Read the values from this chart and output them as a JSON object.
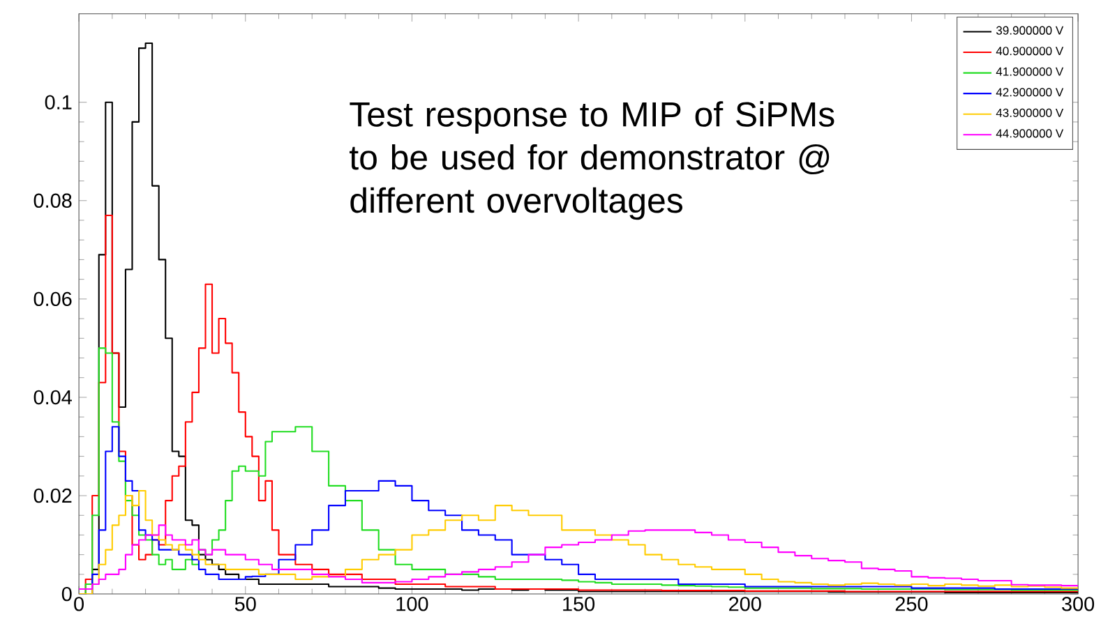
{
  "chart_data": {
    "type": "histogram",
    "annotations": [
      "Test response to MIP of SiPMs to be used for demonstrator @ different overvoltages"
    ],
    "bins": [
      0,
      2,
      4,
      6,
      8,
      10,
      12,
      14,
      16,
      18,
      20,
      22,
      24,
      26,
      28,
      30,
      32,
      34,
      36,
      38,
      40,
      42,
      44,
      46,
      48,
      50,
      52,
      54,
      56,
      58,
      60,
      65,
      70,
      75,
      80,
      85,
      90,
      95,
      100,
      105,
      110,
      115,
      120,
      125,
      130,
      135,
      140,
      145,
      150,
      155,
      160,
      165,
      170,
      175,
      180,
      185,
      190,
      195,
      200,
      205,
      210,
      215,
      220,
      225,
      230,
      235,
      240,
      245,
      250,
      255,
      260,
      265,
      270,
      275,
      280,
      285,
      290,
      295,
      300
    ],
    "series": [
      {
        "name": "39.900000 V",
        "color": "#000000",
        "values": [
          0,
          0,
          0.005,
          0.069,
          0.1,
          0.049,
          0.038,
          0.066,
          0.096,
          0.111,
          0.112,
          0.083,
          0.068,
          0.052,
          0.029,
          0.028,
          0.015,
          0.014,
          0.008,
          0.007,
          0.006,
          0.005,
          0.004,
          0.004,
          0.003,
          0.003,
          0.003,
          0.002,
          0.002,
          0.002,
          0.002,
          0.002,
          0.002,
          0.0015,
          0.0015,
          0.0015,
          0.0012,
          0.001,
          0.001,
          0.001,
          0.001,
          0.0008,
          0.001,
          0.001,
          0.0008,
          0.001,
          0.0008,
          0.0008,
          0.0005,
          0.0005,
          0.0005,
          0.0005,
          0.0005,
          0.0005,
          0.0005,
          0.0005,
          0.0005,
          0.0005,
          0.0005,
          0.0005,
          0.0005,
          0.0005,
          0.0005,
          0.0004,
          0.0004,
          0.0004,
          0.0004,
          0.0004,
          0.0004,
          0.0004,
          0.0003,
          0.0003,
          0.0003,
          0.0003,
          0.0003,
          0.0003,
          0.0003,
          0.0003
        ]
      },
      {
        "name": "40.900000 V",
        "color": "#ff0000",
        "values": [
          0,
          0.003,
          0.02,
          0.043,
          0.077,
          0.049,
          0.029,
          0.02,
          0.01,
          0.007,
          0.008,
          0.011,
          0.01,
          0.019,
          0.024,
          0.026,
          0.035,
          0.041,
          0.05,
          0.063,
          0.049,
          0.056,
          0.051,
          0.045,
          0.037,
          0.032,
          0.028,
          0.019,
          0.023,
          0.013,
          0.008,
          0.006,
          0.005,
          0.004,
          0.004,
          0.003,
          0.003,
          0.002,
          0.002,
          0.002,
          0.0015,
          0.0015,
          0.0015,
          0.001,
          0.001,
          0.001,
          0.001,
          0.001,
          0.0008,
          0.0008,
          0.0008,
          0.0008,
          0.0008,
          0.0007,
          0.0007,
          0.0007,
          0.0007,
          0.0007,
          0.0006,
          0.0006,
          0.0006,
          0.0006,
          0.0006,
          0.0006,
          0.0005,
          0.0005,
          0.0005,
          0.0005,
          0.0005,
          0.0005,
          0.0005,
          0.0005,
          0.0005,
          0.0005,
          0.0005,
          0.0005,
          0.0005,
          0.0005
        ]
      },
      {
        "name": "41.900000 V",
        "color": "#22dd22",
        "values": [
          0,
          0.002,
          0.016,
          0.05,
          0.049,
          0.035,
          0.027,
          0.019,
          0.016,
          0.012,
          0.011,
          0.008,
          0.006,
          0.007,
          0.005,
          0.005,
          0.007,
          0.006,
          0.009,
          0.008,
          0.011,
          0.013,
          0.019,
          0.025,
          0.026,
          0.025,
          0.025,
          0.024,
          0.031,
          0.033,
          0.033,
          0.034,
          0.029,
          0.022,
          0.019,
          0.013,
          0.009,
          0.006,
          0.005,
          0.005,
          0.004,
          0.004,
          0.0035,
          0.003,
          0.003,
          0.003,
          0.003,
          0.0028,
          0.0025,
          0.0023,
          0.002,
          0.002,
          0.002,
          0.0018,
          0.0017,
          0.0016,
          0.0015,
          0.0014,
          0.0012,
          0.0012,
          0.0012,
          0.0012,
          0.0011,
          0.0011,
          0.0011,
          0.001,
          0.001,
          0.001,
          0.001,
          0.001,
          0.0009,
          0.0009,
          0.0009,
          0.0009,
          0.0008,
          0.0008,
          0.0008,
          0.0008
        ]
      },
      {
        "name": "42.900000 V",
        "color": "#0000ff",
        "values": [
          0,
          0,
          0.004,
          0.013,
          0.029,
          0.034,
          0.028,
          0.023,
          0.021,
          0.013,
          0.012,
          0.011,
          0.009,
          0.009,
          0.009,
          0.008,
          0.008,
          0.007,
          0.005,
          0.004,
          0.004,
          0.003,
          0.003,
          0.003,
          0.003,
          0.0035,
          0.0036,
          0.0036,
          0.004,
          0.004,
          0.007,
          0.01,
          0.013,
          0.018,
          0.021,
          0.021,
          0.023,
          0.022,
          0.019,
          0.017,
          0.016,
          0.013,
          0.012,
          0.011,
          0.008,
          0.008,
          0.007,
          0.006,
          0.004,
          0.003,
          0.003,
          0.003,
          0.003,
          0.003,
          0.002,
          0.002,
          0.002,
          0.002,
          0.0015,
          0.0015,
          0.0015,
          0.0015,
          0.0015,
          0.0015,
          0.0015,
          0.0015,
          0.0015,
          0.0015,
          0.0012,
          0.0012,
          0.0012,
          0.0012,
          0.0012,
          0.001,
          0.001,
          0.001,
          0.001,
          0.001
        ]
      },
      {
        "name": "43.900000 V",
        "color": "#ffcc00",
        "values": [
          0,
          0,
          0.002,
          0.006,
          0.009,
          0.014,
          0.016,
          0.02,
          0.018,
          0.021,
          0.015,
          0.012,
          0.011,
          0.01,
          0.009,
          0.01,
          0.009,
          0.008,
          0.007,
          0.006,
          0.006,
          0.006,
          0.005,
          0.005,
          0.005,
          0.005,
          0.005,
          0.004,
          0.004,
          0.004,
          0.004,
          0.003,
          0.0035,
          0.0036,
          0.005,
          0.007,
          0.008,
          0.009,
          0.012,
          0.013,
          0.015,
          0.016,
          0.015,
          0.018,
          0.017,
          0.016,
          0.016,
          0.013,
          0.013,
          0.012,
          0.011,
          0.01,
          0.008,
          0.007,
          0.006,
          0.0055,
          0.005,
          0.005,
          0.004,
          0.003,
          0.0025,
          0.0023,
          0.002,
          0.0018,
          0.002,
          0.0022,
          0.002,
          0.0018,
          0.002,
          0.0017,
          0.002,
          0.0018,
          0.0016,
          0.0018,
          0.0015,
          0.0016,
          0.0014,
          0.0012
        ]
      },
      {
        "name": "44.900000 V",
        "color": "#ff00ff",
        "values": [
          0.001,
          0.001,
          0.002,
          0.003,
          0.004,
          0.004,
          0.005,
          0.008,
          0.01,
          0.011,
          0.012,
          0.012,
          0.014,
          0.012,
          0.011,
          0.011,
          0.01,
          0.011,
          0.009,
          0.008,
          0.009,
          0.009,
          0.008,
          0.008,
          0.008,
          0.007,
          0.007,
          0.006,
          0.006,
          0.005,
          0.005,
          0.005,
          0.004,
          0.0035,
          0.003,
          0.0023,
          0.0023,
          0.0025,
          0.003,
          0.0035,
          0.004,
          0.0045,
          0.005,
          0.0055,
          0.0065,
          0.008,
          0.0095,
          0.01,
          0.0105,
          0.011,
          0.012,
          0.0128,
          0.013,
          0.013,
          0.013,
          0.0125,
          0.012,
          0.011,
          0.0105,
          0.0095,
          0.0085,
          0.0078,
          0.0072,
          0.0068,
          0.0065,
          0.0052,
          0.005,
          0.0047,
          0.0035,
          0.0033,
          0.0032,
          0.003,
          0.0027,
          0.0027,
          0.0019,
          0.0018,
          0.0018,
          0.0017
        ]
      }
    ],
    "xlim": [
      0,
      300
    ],
    "xticks": [
      0,
      50,
      100,
      150,
      200,
      250,
      300
    ],
    "ylim": [
      0,
      0.118
    ],
    "yticks": [
      0,
      0.02,
      0.04,
      0.06,
      0.08,
      0.1
    ],
    "legend": "top right"
  }
}
